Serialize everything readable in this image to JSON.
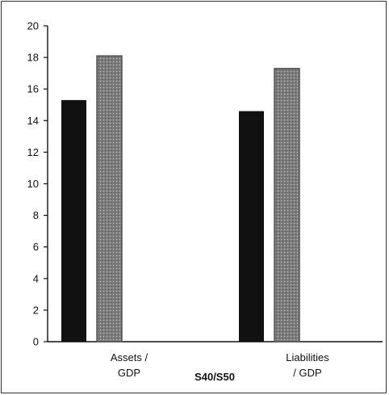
{
  "chart_data": {
    "type": "bar",
    "categories": [
      "Assets / GDP",
      "Liabilities / GDP"
    ],
    "category_lines": [
      [
        "Assets /",
        "GDP"
      ],
      [
        "Liabilities",
        "/ GDP"
      ]
    ],
    "series": [
      {
        "values": [
          15.3,
          14.6
        ],
        "color": "#111111"
      },
      {
        "values": [
          18.1,
          17.3
        ],
        "color": "#8a8a8a"
      }
    ],
    "ylim": [
      0,
      20
    ],
    "yticks": [
      0,
      2,
      4,
      6,
      8,
      10,
      12,
      14,
      16,
      18,
      20
    ],
    "footer_label": "S40/S50",
    "grid": false,
    "legend": "none"
  }
}
